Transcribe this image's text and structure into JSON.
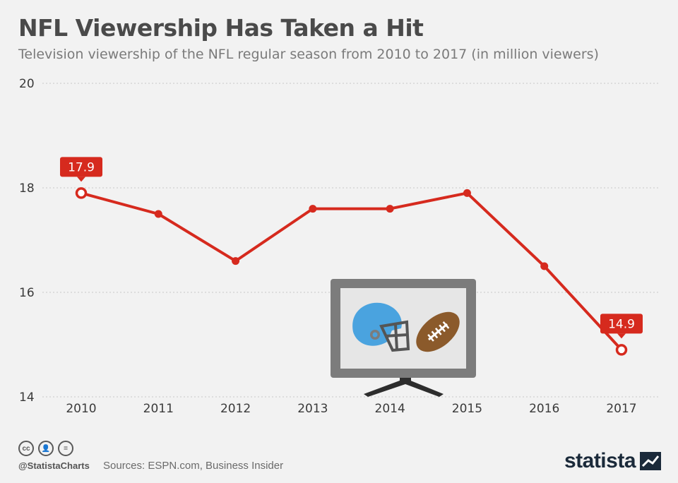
{
  "title": "NFL Viewership Has Taken a Hit",
  "subtitle": "Television viewership of the NFL regular season from 2010 to 2017 (in million viewers)",
  "footer": {
    "handle": "@StatistaCharts",
    "sources": "Sources: ESPN.com, Business Insider",
    "brand": "statista",
    "cc_icons": [
      "cc",
      "by",
      "nd"
    ]
  },
  "colors": {
    "line": "#d62a1e",
    "background": "#f2f2f2",
    "tv_frame": "#7c7c7c",
    "helmet": "#4aa3df",
    "football": "#8b5a2b"
  },
  "chart_data": {
    "type": "line",
    "x": [
      "2010",
      "2011",
      "2012",
      "2013",
      "2014",
      "2015",
      "2016",
      "2017"
    ],
    "series": [
      {
        "values": [
          17.9,
          17.5,
          16.6,
          17.6,
          17.6,
          17.9,
          16.5,
          14.9
        ]
      }
    ],
    "ylim": [
      14,
      20
    ],
    "yticks": [
      14,
      16,
      18,
      20
    ],
    "labeled_points": [
      {
        "x": "2010",
        "label": "17.9"
      },
      {
        "x": "2017",
        "label": "14.9"
      }
    ],
    "grid": "horizontal dotted",
    "decoration": "tv-football-icon"
  }
}
